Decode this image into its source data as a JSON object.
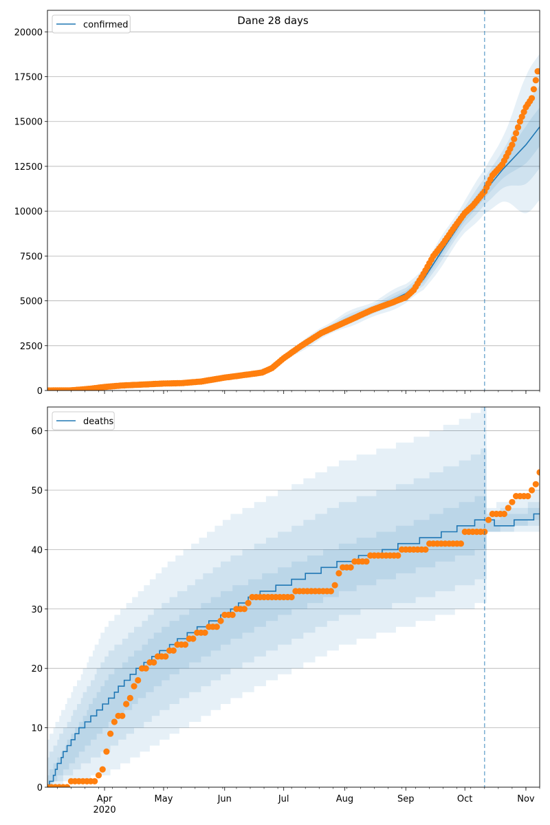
{
  "title": "Dane 28 days",
  "colors": {
    "model": "#1f77b4",
    "observed": "#ff7f0e",
    "band": "#1f77b4",
    "grid": "#b0b0b0",
    "marker": "#1f77b4"
  },
  "x_axis": {
    "range": [
      "2020-03-03",
      "2020-11-08"
    ],
    "month_labels": [
      {
        "date": "2020-04-01",
        "label": "Apr",
        "sublabel": "2020"
      },
      {
        "date": "2020-05-01",
        "label": "May",
        "sublabel": ""
      },
      {
        "date": "2020-06-01",
        "label": "Jun",
        "sublabel": ""
      },
      {
        "date": "2020-07-01",
        "label": "Jul",
        "sublabel": ""
      },
      {
        "date": "2020-08-01",
        "label": "Aug",
        "sublabel": ""
      },
      {
        "date": "2020-09-01",
        "label": "Sep",
        "sublabel": ""
      },
      {
        "date": "2020-10-01",
        "label": "Oct",
        "sublabel": ""
      },
      {
        "date": "2020-11-01",
        "label": "Nov",
        "sublabel": ""
      }
    ],
    "forecast_start": "2020-10-11"
  },
  "chart_data": [
    {
      "type": "line",
      "legend": "confirmed",
      "legend_position": "upper-left",
      "grid_y": true,
      "ylim": [
        0,
        21200
      ],
      "yticks": [
        0,
        2500,
        5000,
        7500,
        10000,
        12500,
        15000,
        17500,
        20000
      ],
      "model": [
        [
          "2020-03-03",
          0
        ],
        [
          "2020-03-20",
          40
        ],
        [
          "2020-04-01",
          200
        ],
        [
          "2020-04-15",
          320
        ],
        [
          "2020-05-01",
          400
        ],
        [
          "2020-05-15",
          470
        ],
        [
          "2020-06-01",
          720
        ],
        [
          "2020-06-15",
          950
        ],
        [
          "2020-06-25",
          1250
        ],
        [
          "2020-07-01",
          1800
        ],
        [
          "2020-07-10",
          2450
        ],
        [
          "2020-07-20",
          3200
        ],
        [
          "2020-08-01",
          3900
        ],
        [
          "2020-08-15",
          4500
        ],
        [
          "2020-09-01",
          5400
        ],
        [
          "2020-09-10",
          6200
        ],
        [
          "2020-09-20",
          7900
        ],
        [
          "2020-10-01",
          9700
        ],
        [
          "2020-10-11",
          11100
        ],
        [
          "2020-10-20",
          12300
        ],
        [
          "2020-11-01",
          13700
        ],
        [
          "2020-11-08",
          14700
        ]
      ],
      "bands": [
        {
          "spread": 0.1,
          "spread_forecast": 0.3
        },
        {
          "spread": 0.06,
          "spread_forecast": 0.17
        },
        {
          "spread": 0.03,
          "spread_forecast": 0.08
        }
      ],
      "observed": [
        [
          "2020-03-03",
          0
        ],
        [
          "2020-03-15",
          10
        ],
        [
          "2020-03-25",
          100
        ],
        [
          "2020-04-01",
          200
        ],
        [
          "2020-04-10",
          280
        ],
        [
          "2020-04-20",
          330
        ],
        [
          "2020-05-01",
          390
        ],
        [
          "2020-05-10",
          410
        ],
        [
          "2020-05-20",
          500
        ],
        [
          "2020-06-01",
          720
        ],
        [
          "2020-06-10",
          850
        ],
        [
          "2020-06-20",
          1000
        ],
        [
          "2020-06-25",
          1250
        ],
        [
          "2020-07-01",
          1800
        ],
        [
          "2020-07-10",
          2500
        ],
        [
          "2020-07-20",
          3200
        ],
        [
          "2020-08-01",
          3800
        ],
        [
          "2020-08-15",
          4500
        ],
        [
          "2020-08-25",
          4900
        ],
        [
          "2020-09-01",
          5200
        ],
        [
          "2020-09-05",
          5600
        ],
        [
          "2020-09-10",
          6500
        ],
        [
          "2020-09-15",
          7500
        ],
        [
          "2020-09-20",
          8200
        ],
        [
          "2020-09-25",
          9000
        ],
        [
          "2020-10-01",
          9900
        ],
        [
          "2020-10-05",
          10300
        ],
        [
          "2020-10-11",
          11100
        ],
        [
          "2020-10-15",
          12000
        ],
        [
          "2020-10-20",
          12600
        ],
        [
          "2020-10-25",
          13700
        ],
        [
          "2020-10-29",
          15000
        ],
        [
          "2020-11-01",
          15800
        ],
        [
          "2020-11-04",
          16300
        ],
        [
          "2020-11-06",
          17300
        ],
        [
          "2020-11-07",
          17800
        ]
      ]
    },
    {
      "type": "line",
      "legend": "deaths",
      "legend_position": "upper-left",
      "grid_y": true,
      "ylim": [
        0,
        64
      ],
      "yticks": [
        0,
        10,
        20,
        30,
        40,
        50,
        60
      ],
      "step": true,
      "model": [
        [
          "2020-03-03",
          0
        ],
        [
          "2020-03-10",
          5
        ],
        [
          "2020-03-20",
          10
        ],
        [
          "2020-04-01",
          14
        ],
        [
          "2020-04-15",
          19
        ],
        [
          "2020-05-01",
          23
        ],
        [
          "2020-05-15",
          26
        ],
        [
          "2020-06-01",
          29
        ],
        [
          "2020-06-15",
          32
        ],
        [
          "2020-07-01",
          34
        ],
        [
          "2020-07-15",
          36
        ],
        [
          "2020-08-01",
          38
        ],
        [
          "2020-08-15",
          39
        ],
        [
          "2020-09-01",
          41
        ],
        [
          "2020-09-15",
          42
        ],
        [
          "2020-10-01",
          44
        ],
        [
          "2020-10-11",
          45
        ],
        [
          "2020-10-20",
          44
        ],
        [
          "2020-11-01",
          45
        ],
        [
          "2020-11-08",
          46
        ]
      ],
      "bands_lower": [
        [
          [
            "2020-03-03",
            0
          ],
          [
            "2020-04-01",
            2
          ],
          [
            "2020-05-01",
            8
          ],
          [
            "2020-06-01",
            14
          ],
          [
            "2020-07-01",
            19
          ],
          [
            "2020-08-01",
            24
          ],
          [
            "2020-09-01",
            27
          ],
          [
            "2020-10-01",
            30
          ],
          [
            "2020-10-11",
            31
          ],
          [
            "2020-10-12",
            43
          ],
          [
            "2020-11-08",
            43
          ]
        ],
        [
          [
            "2020-03-03",
            0
          ],
          [
            "2020-04-01",
            6
          ],
          [
            "2020-05-01",
            13
          ],
          [
            "2020-06-01",
            19
          ],
          [
            "2020-07-01",
            24
          ],
          [
            "2020-08-01",
            29
          ],
          [
            "2020-09-01",
            31
          ],
          [
            "2020-10-01",
            34
          ],
          [
            "2020-10-11",
            35
          ],
          [
            "2020-10-12",
            43
          ],
          [
            "2020-11-08",
            44
          ]
        ],
        [
          [
            "2020-03-03",
            0
          ],
          [
            "2020-04-01",
            10
          ],
          [
            "2020-05-01",
            18
          ],
          [
            "2020-06-01",
            24
          ],
          [
            "2020-07-01",
            29
          ],
          [
            "2020-08-01",
            33
          ],
          [
            "2020-09-01",
            36
          ],
          [
            "2020-10-01",
            39
          ],
          [
            "2020-10-11",
            40
          ],
          [
            "2020-10-12",
            43
          ],
          [
            "2020-11-08",
            45
          ]
        ]
      ],
      "bands_upper": [
        [
          [
            "2020-03-03",
            8
          ],
          [
            "2020-04-01",
            27
          ],
          [
            "2020-05-01",
            37
          ],
          [
            "2020-06-01",
            45
          ],
          [
            "2020-07-01",
            50
          ],
          [
            "2020-08-01",
            55
          ],
          [
            "2020-09-01",
            58
          ],
          [
            "2020-10-01",
            62
          ],
          [
            "2020-10-11",
            64
          ],
          [
            "2020-10-12",
            47
          ],
          [
            "2020-11-08",
            50
          ]
        ],
        [
          [
            "2020-03-03",
            5
          ],
          [
            "2020-04-01",
            22
          ],
          [
            "2020-05-01",
            31
          ],
          [
            "2020-06-01",
            38
          ],
          [
            "2020-07-01",
            43
          ],
          [
            "2020-08-01",
            48
          ],
          [
            "2020-09-01",
            51
          ],
          [
            "2020-10-01",
            55
          ],
          [
            "2020-10-11",
            57
          ],
          [
            "2020-10-12",
            46
          ],
          [
            "2020-11-08",
            48
          ]
        ],
        [
          [
            "2020-03-03",
            2
          ],
          [
            "2020-04-01",
            18
          ],
          [
            "2020-05-01",
            27
          ],
          [
            "2020-06-01",
            33
          ],
          [
            "2020-07-01",
            37
          ],
          [
            "2020-08-01",
            41
          ],
          [
            "2020-09-01",
            44
          ],
          [
            "2020-10-01",
            48
          ],
          [
            "2020-10-11",
            49
          ],
          [
            "2020-10-12",
            45
          ],
          [
            "2020-11-08",
            47
          ]
        ]
      ],
      "observed": [
        [
          "2020-03-03",
          0
        ],
        [
          "2020-03-27",
          1
        ],
        [
          "2020-04-01",
          3
        ],
        [
          "2020-04-03",
          8
        ],
        [
          "2020-04-06",
          11
        ],
        [
          "2020-04-10",
          12
        ],
        [
          "2020-04-15",
          16
        ],
        [
          "2020-04-20",
          20
        ],
        [
          "2020-04-25",
          21
        ],
        [
          "2020-04-30",
          22
        ],
        [
          "2020-05-15",
          25
        ],
        [
          "2020-05-20",
          26
        ],
        [
          "2020-05-28",
          27
        ],
        [
          "2020-06-01",
          29
        ],
        [
          "2020-06-10",
          30
        ],
        [
          "2020-06-15",
          32
        ],
        [
          "2020-07-01",
          32
        ],
        [
          "2020-07-10",
          33
        ],
        [
          "2020-07-25",
          33
        ],
        [
          "2020-07-28",
          35
        ],
        [
          "2020-08-01",
          37
        ],
        [
          "2020-08-10",
          38
        ],
        [
          "2020-08-15",
          39
        ],
        [
          "2020-08-25",
          39
        ],
        [
          "2020-09-01",
          40
        ],
        [
          "2020-09-10",
          40
        ],
        [
          "2020-09-15",
          41
        ],
        [
          "2020-09-30",
          41
        ],
        [
          "2020-10-01",
          43
        ],
        [
          "2020-10-11",
          43
        ],
        [
          "2020-10-13",
          45
        ],
        [
          "2020-10-15",
          46
        ],
        [
          "2020-10-20",
          46
        ],
        [
          "2020-10-25",
          48
        ],
        [
          "2020-10-28",
          49
        ],
        [
          "2020-11-01",
          49
        ],
        [
          "2020-11-04",
          50
        ],
        [
          "2020-11-06",
          51
        ],
        [
          "2020-11-07",
          53
        ]
      ]
    }
  ]
}
